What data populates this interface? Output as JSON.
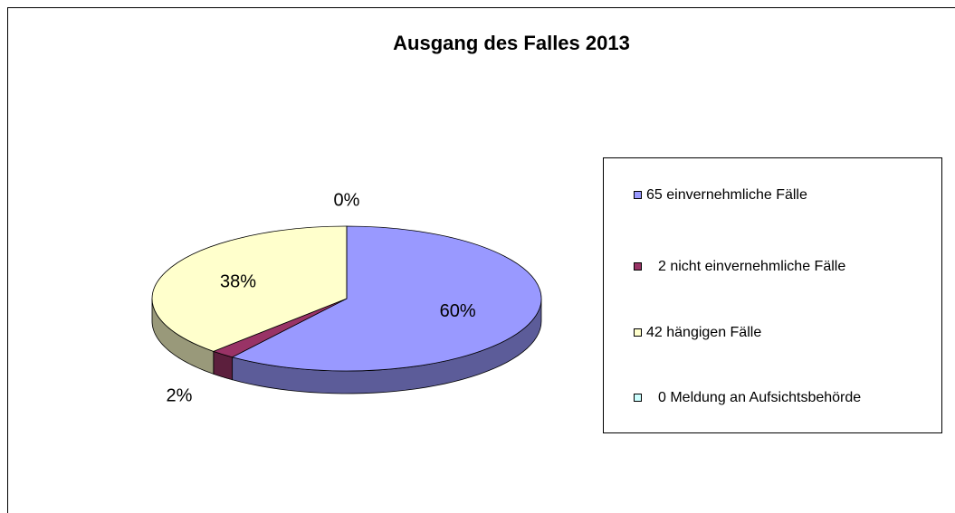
{
  "chart_data": {
    "type": "pie3d",
    "title": "Ausgang des Falles 2013",
    "categories": [
      "65 einvernehmliche Fälle",
      "2 nicht einvernehmliche Fälle",
      "42 hängigen Fälle",
      "0 Meldung an Aufsichtsbehörde"
    ],
    "values": [
      60,
      2,
      38,
      0
    ],
    "value_labels": [
      "60%",
      "2%",
      "38%",
      "0%"
    ],
    "colors": [
      "#9999ff",
      "#993366",
      "#ffffcc",
      "#ccffff"
    ],
    "legend": "right"
  }
}
